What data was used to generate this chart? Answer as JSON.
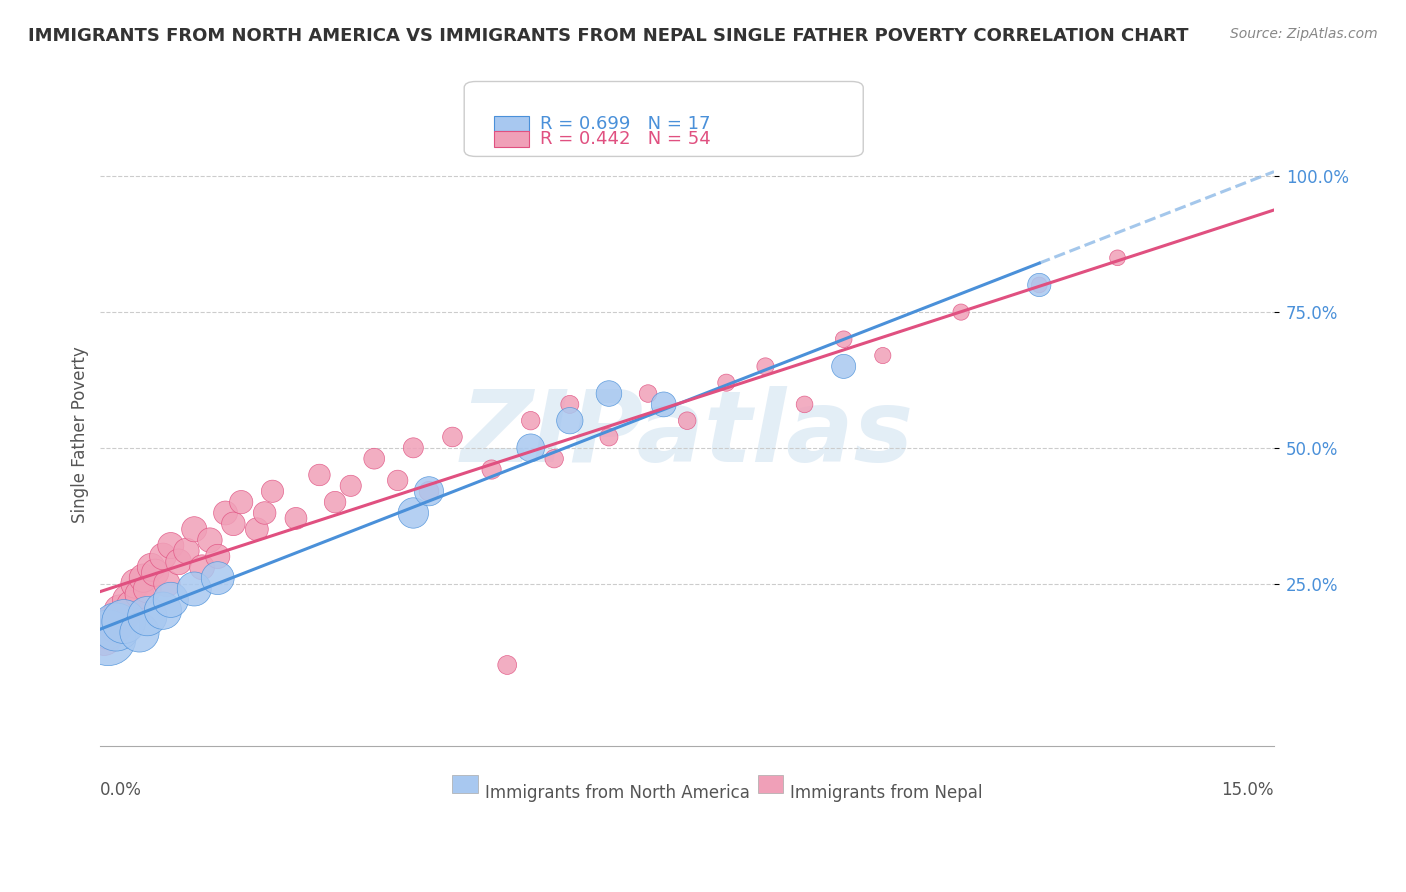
{
  "title": "IMMIGRANTS FROM NORTH AMERICA VS IMMIGRANTS FROM NEPAL SINGLE FATHER POVERTY CORRELATION CHART",
  "source": "Source: ZipAtlas.com",
  "ylabel": "Single Father Poverty",
  "xlim": [
    0.0,
    0.15
  ],
  "ylim": [
    -0.05,
    1.1
  ],
  "legend_r1": "R = 0.699",
  "legend_n1": "N = 17",
  "legend_r2": "R = 0.442",
  "legend_n2": "N = 54",
  "watermark": "ZIPatlas",
  "color_blue": "#a8c8f0",
  "color_pink": "#f0a0b8",
  "color_blue_dark": "#4a90d9",
  "color_pink_dark": "#e05080",
  "ytick_vals": [
    0.25,
    0.5,
    0.75,
    1.0
  ],
  "ytick_labels": [
    "25.0%",
    "50.0%",
    "75.0%",
    "100.0%"
  ],
  "north_america_x": [
    0.001,
    0.002,
    0.003,
    0.005,
    0.006,
    0.008,
    0.009,
    0.012,
    0.015,
    0.04,
    0.042,
    0.055,
    0.06,
    0.065,
    0.072,
    0.095,
    0.12
  ],
  "north_america_y": [
    0.15,
    0.17,
    0.18,
    0.16,
    0.19,
    0.2,
    0.22,
    0.24,
    0.26,
    0.38,
    0.42,
    0.5,
    0.55,
    0.6,
    0.58,
    0.65,
    0.8
  ],
  "north_america_size": [
    400,
    300,
    250,
    200,
    200,
    180,
    160,
    150,
    140,
    120,
    110,
    100,
    90,
    85,
    80,
    75,
    70
  ],
  "nepal_x": [
    0.0005,
    0.001,
    0.0015,
    0.002,
    0.0025,
    0.003,
    0.0035,
    0.004,
    0.0045,
    0.005,
    0.0055,
    0.006,
    0.0065,
    0.007,
    0.008,
    0.0085,
    0.009,
    0.01,
    0.011,
    0.012,
    0.013,
    0.014,
    0.015,
    0.016,
    0.017,
    0.018,
    0.02,
    0.021,
    0.022,
    0.025,
    0.028,
    0.03,
    0.032,
    0.035,
    0.038,
    0.04,
    0.042,
    0.045,
    0.05,
    0.052,
    0.055,
    0.058,
    0.06,
    0.065,
    0.07,
    0.075,
    0.08,
    0.085,
    0.09,
    0.095,
    0.1,
    0.11,
    0.12,
    0.13
  ],
  "nepal_y": [
    0.15,
    0.16,
    0.18,
    0.17,
    0.2,
    0.19,
    0.22,
    0.21,
    0.25,
    0.23,
    0.26,
    0.24,
    0.28,
    0.27,
    0.3,
    0.25,
    0.32,
    0.29,
    0.31,
    0.35,
    0.28,
    0.33,
    0.3,
    0.38,
    0.36,
    0.4,
    0.35,
    0.38,
    0.42,
    0.37,
    0.45,
    0.4,
    0.43,
    0.48,
    0.44,
    0.5,
    0.42,
    0.52,
    0.46,
    0.1,
    0.55,
    0.48,
    0.58,
    0.52,
    0.6,
    0.55,
    0.62,
    0.65,
    0.58,
    0.7,
    0.67,
    0.75,
    0.8,
    0.85
  ],
  "nepal_size": [
    80,
    75,
    70,
    68,
    65,
    63,
    60,
    58,
    56,
    54,
    52,
    50,
    50,
    48,
    46,
    45,
    44,
    43,
    42,
    41,
    40,
    39,
    38,
    37,
    36,
    35,
    34,
    33,
    32,
    31,
    30,
    30,
    29,
    28,
    27,
    26,
    25,
    25,
    24,
    23,
    22,
    22,
    21,
    21,
    20,
    20,
    19,
    19,
    18,
    18,
    17,
    17,
    16,
    16
  ]
}
